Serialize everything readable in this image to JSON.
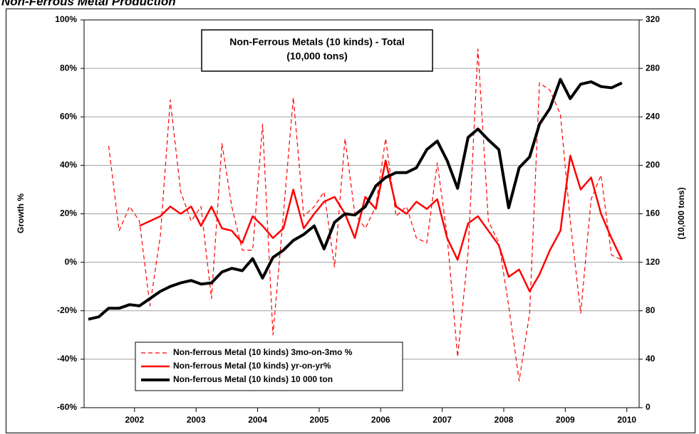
{
  "chart_data": {
    "type": "line",
    "title": "Non-Ferrous Metal Production",
    "annotation": [
      "Non-Ferrous Metals (10 kinds) - Total",
      "(10,000 tons)"
    ],
    "y_label": "Growth %",
    "y2_label": "(10,000 tons)",
    "x": [
      2001.25,
      2001.42,
      2001.58,
      2001.75,
      2001.92,
      2002.08,
      2002.25,
      2002.42,
      2002.58,
      2002.75,
      2002.92,
      2003.08,
      2003.25,
      2003.42,
      2003.58,
      2003.75,
      2003.92,
      2004.08,
      2004.25,
      2004.42,
      2004.58,
      2004.75,
      2004.92,
      2005.08,
      2005.25,
      2005.42,
      2005.58,
      2005.75,
      2005.92,
      2006.08,
      2006.25,
      2006.42,
      2006.58,
      2006.75,
      2006.92,
      2007.08,
      2007.25,
      2007.42,
      2007.58,
      2007.75,
      2007.92,
      2008.08,
      2008.25,
      2008.42,
      2008.58,
      2008.75,
      2008.92,
      2009.08,
      2009.25,
      2009.42,
      2009.58,
      2009.75,
      2009.92
    ],
    "xlim": [
      2001.18,
      2010.2
    ],
    "xticks": [
      2002,
      2003,
      2004,
      2005,
      2006,
      2007,
      2008,
      2009,
      2010
    ],
    "ylim": [
      -60,
      100
    ],
    "yticks": [
      {
        "value": -60,
        "label": "-60%"
      },
      {
        "value": -40,
        "label": "-40%"
      },
      {
        "value": -20,
        "label": "-20%"
      },
      {
        "value": 0,
        "label": "0%"
      },
      {
        "value": 20,
        "label": "20%"
      },
      {
        "value": 40,
        "label": "40%"
      },
      {
        "value": 60,
        "label": "60%"
      },
      {
        "value": 80,
        "label": "80%"
      },
      {
        "value": 100,
        "label": "100%"
      }
    ],
    "y2lim": [
      0,
      320
    ],
    "y2ticks": [
      0,
      40,
      80,
      120,
      160,
      200,
      240,
      280,
      320
    ],
    "grid": true,
    "legend": "lower left",
    "series": [
      {
        "name": "Non-ferrous Metal (10 kinds) 3mo-on-3mo %",
        "color": "#ff0000",
        "line_style": "dashed",
        "values": [
          null,
          null,
          48,
          13,
          23,
          17,
          -18,
          11,
          67,
          29,
          17,
          23,
          -15,
          49,
          23,
          5,
          5,
          57,
          -30,
          20,
          68,
          19,
          23,
          29,
          -2,
          51,
          20,
          14,
          23,
          51,
          19,
          23,
          10,
          8,
          41,
          11,
          -39,
          4,
          88,
          17,
          8,
          -18,
          -49,
          -21,
          74,
          71,
          61,
          17,
          -21,
          26,
          36,
          3,
          1
        ]
      },
      {
        "name": "Non-ferrous Metal (10 kinds) yr-on-yr%",
        "color": "#ff0000",
        "line_style": "solid",
        "values": [
          null,
          null,
          null,
          null,
          null,
          15,
          17,
          19,
          23,
          20,
          23,
          15,
          23,
          14,
          13,
          8,
          19,
          15,
          10,
          14,
          30,
          14,
          20,
          25,
          27,
          20,
          10,
          27,
          22,
          42,
          23,
          20,
          25,
          22,
          26,
          10,
          1,
          16,
          19,
          13,
          7,
          -6,
          -3,
          -12,
          -5,
          5,
          13,
          44,
          30,
          35,
          20,
          10,
          1
        ]
      },
      {
        "name": "Non-ferrous Metal (10 kinds) 10 000 ton",
        "color": "#000000",
        "line_style": "solid",
        "axis": "y2",
        "values": [
          73,
          75,
          82,
          82,
          85,
          84,
          90,
          96,
          100,
          103,
          105,
          102,
          103,
          112,
          115,
          113,
          123,
          107,
          124,
          130,
          138,
          143,
          150,
          131,
          153,
          160,
          159,
          166,
          183,
          190,
          194,
          194,
          198,
          213,
          220,
          204,
          181,
          223,
          230,
          221,
          213,
          165,
          198,
          207,
          234,
          247,
          271,
          255,
          267,
          269,
          265,
          264,
          268
        ]
      }
    ]
  }
}
